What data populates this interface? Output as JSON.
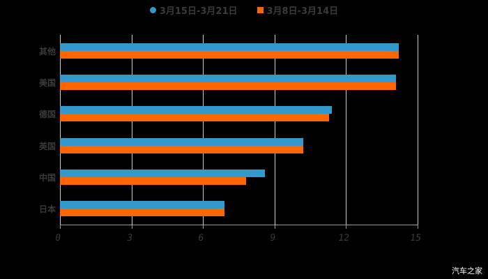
{
  "legend": {
    "series1": {
      "label": "3月15日-3月21日",
      "color": "#3399CC"
    },
    "series2": {
      "label": "3月8日-3月14日",
      "color": "#FF6600"
    }
  },
  "axis": {
    "ticks": [
      "0",
      "3",
      "6",
      "9",
      "12",
      "15"
    ]
  },
  "categories": [
    "其他",
    "美国",
    "德国",
    "英国",
    "中国",
    "日本"
  ],
  "watermark": "汽车之家",
  "chart_data": {
    "type": "bar",
    "orientation": "horizontal",
    "title": "",
    "xlabel": "",
    "ylabel": "",
    "categories": [
      "其他",
      "美国",
      "德国",
      "英国",
      "中国",
      "日本"
    ],
    "series": [
      {
        "name": "3月15日-3月21日",
        "color": "#3399CC",
        "values": [
          14.2,
          14.1,
          11.4,
          10.2,
          8.6,
          6.9
        ]
      },
      {
        "name": "3月8日-3月14日",
        "color": "#FF6600",
        "values": [
          14.2,
          14.1,
          11.3,
          10.2,
          7.8,
          6.9
        ]
      }
    ],
    "xlim": [
      0,
      15
    ],
    "xticks": [
      0,
      3,
      6,
      9,
      12,
      15
    ],
    "grid": "vertical",
    "legend_position": "top"
  }
}
